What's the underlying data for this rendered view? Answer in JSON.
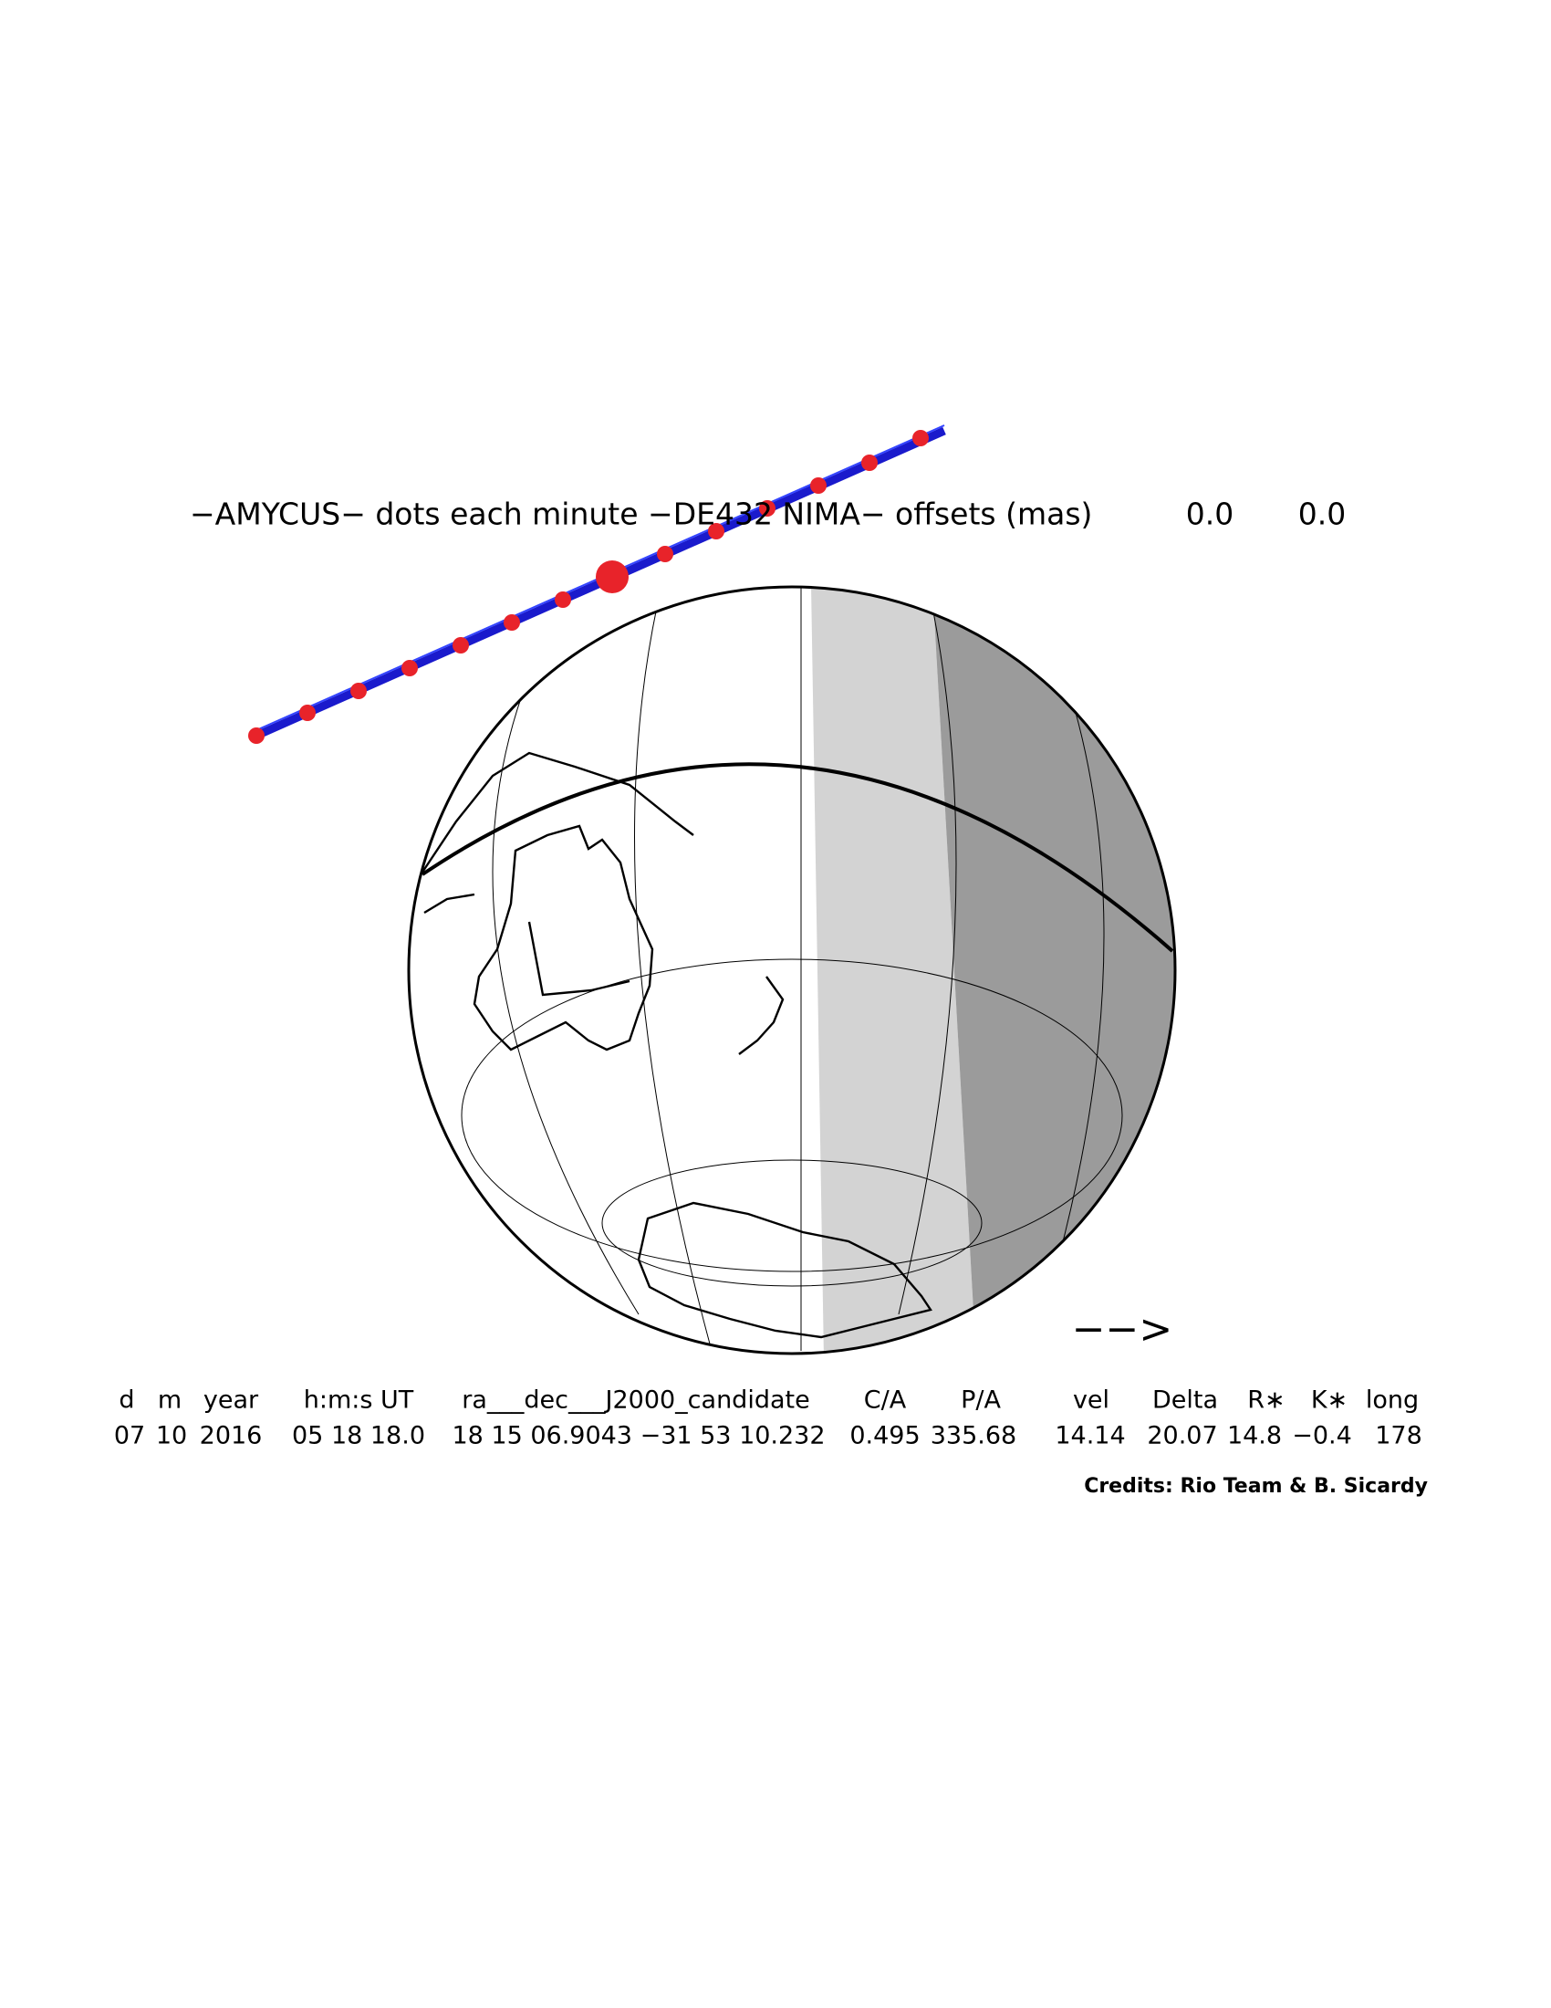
{
  "header": {
    "title": "−AMYCUS− dots each minute −DE432 NIMA− offsets (mas)",
    "offsets": [
      "0.0",
      "0.0"
    ]
  },
  "table": {
    "headers": [
      "d",
      "m",
      "year",
      "h:m:s UT",
      "ra___dec___J2000_candidate",
      "C/A",
      "P/A",
      "vel",
      "Delta",
      "R∗",
      "K∗",
      "long"
    ],
    "rows": [
      [
        "07",
        "10",
        "2016",
        "05 18 18.0",
        "18 15 06.9043 −31 53 10.232",
        "0.495",
        "335.68",
        "14.14",
        "20.07",
        "14.8",
        "−0.4",
        "178"
      ]
    ]
  },
  "direction_arrow": "−−>",
  "credits": "Credits: Rio Team & B. Sicardy"
}
